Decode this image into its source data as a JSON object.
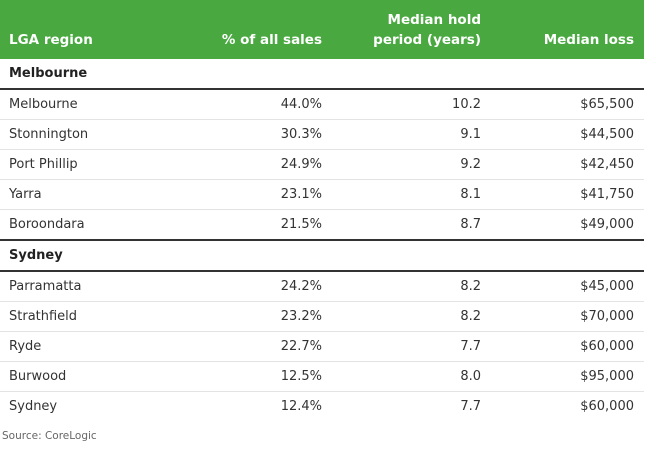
{
  "table": {
    "headers": {
      "region": "LGA region",
      "pct": "% of all sales",
      "hold_line1": "Median hold",
      "hold_line2": "period (years)",
      "loss": "Median loss"
    },
    "groups": [
      {
        "name": "Melbourne",
        "rows": [
          {
            "region": "Melbourne",
            "pct": "44.0%",
            "hold": "10.2",
            "loss": "$65,500"
          },
          {
            "region": "Stonnington",
            "pct": "30.3%",
            "hold": "9.1",
            "loss": "$44,500"
          },
          {
            "region": "Port Phillip",
            "pct": "24.9%",
            "hold": "9.2",
            "loss": "$42,450"
          },
          {
            "region": "Yarra",
            "pct": "23.1%",
            "hold": "8.1",
            "loss": "$41,750"
          },
          {
            "region": "Boroondara",
            "pct": "21.5%",
            "hold": "8.7",
            "loss": "$49,000"
          }
        ]
      },
      {
        "name": "Sydney",
        "rows": [
          {
            "region": "Parramatta",
            "pct": "24.2%",
            "hold": "8.2",
            "loss": "$45,000"
          },
          {
            "region": "Strathfield",
            "pct": "23.2%",
            "hold": "8.2",
            "loss": "$70,000"
          },
          {
            "region": "Ryde",
            "pct": "22.7%",
            "hold": "7.7",
            "loss": "$60,000"
          },
          {
            "region": "Burwood",
            "pct": "12.5%",
            "hold": "8.0",
            "loss": "$95,000"
          },
          {
            "region": "Sydney",
            "pct": "12.4%",
            "hold": "7.7",
            "loss": "$60,000"
          }
        ]
      }
    ]
  },
  "source": "Source: CoreLogic",
  "colors": {
    "header_bg": "#49a940",
    "header_text": "#ffffff"
  }
}
